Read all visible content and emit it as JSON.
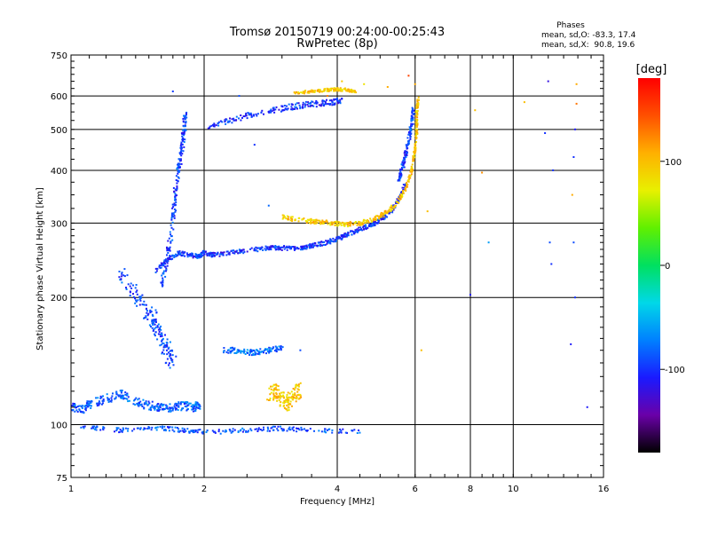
{
  "header": {
    "title_line1": "Tromsø 20150719 00:24:00-00:25:43",
    "title_line2": "RwPretec (8p)"
  },
  "stats": {
    "heading": "Phases",
    "line_o": "mean, sd,O: -83.3, 17.4",
    "line_x": "mean, sd,X:  90.8, 19.6"
  },
  "colorbar": {
    "unit_label": "[deg]",
    "tick_labels": [
      "100",
      "0",
      "-100"
    ],
    "tick_values": [
      100,
      0,
      -100
    ],
    "range": [
      -180,
      180
    ],
    "colors": [
      "#000000",
      "#6a00a8",
      "#1a1aff",
      "#0080ff",
      "#00d8e8",
      "#00e060",
      "#60f000",
      "#e8f000",
      "#ffb000",
      "#ff5000",
      "#ff0000"
    ]
  },
  "chart_data": {
    "type": "scatter",
    "title": "Tromsø 20150719 00:24:00-00:25:43",
    "subtitle": "RwPretec (8p)",
    "xlabel": "Frequency [MHz]",
    "ylabel": "Stationary phase Virtual Height [km]",
    "xscale": "log",
    "yscale": "log",
    "xlim": [
      1,
      16
    ],
    "ylim": [
      75,
      750
    ],
    "xticks": [
      1,
      2,
      4,
      6,
      8,
      10,
      16
    ],
    "xtick_labels": [
      "1",
      "2",
      "4",
      "6",
      "8",
      "10",
      "16"
    ],
    "yticks": [
      75,
      100,
      200,
      300,
      400,
      500,
      600,
      750
    ],
    "ytick_labels": [
      "75",
      "100",
      "200",
      "300",
      "400",
      "500",
      "600",
      "750"
    ],
    "grid": true,
    "color_variable": "phase [deg]",
    "traces": [
      {
        "freq": [
          1.0,
          1.05,
          1.1,
          1.2,
          1.3,
          1.4,
          1.5,
          1.6,
          1.7,
          1.8,
          1.9,
          1.95
        ],
        "height": [
          110,
          108,
          112,
          115,
          118,
          113,
          111,
          110,
          110,
          111,
          110,
          111
        ],
        "phase": -85,
        "spread": 0.03
      },
      {
        "freq": [
          1.3,
          1.4,
          1.5,
          1.55,
          1.6,
          1.65,
          1.7
        ],
        "height": [
          230,
          200,
          185,
          175,
          160,
          150,
          140
        ],
        "phase": -95,
        "spread": 0.06
      },
      {
        "freq": [
          1.6,
          1.65,
          1.7,
          1.72,
          1.75,
          1.78,
          1.8,
          1.82
        ],
        "height": [
          210,
          250,
          300,
          350,
          400,
          450,
          500,
          550
        ],
        "phase": -95,
        "spread": 0.03
      },
      {
        "freq": [
          1.55,
          1.65,
          1.75,
          1.85,
          1.95,
          2.0,
          2.1,
          2.3,
          2.5,
          2.8,
          3.0,
          3.3,
          3.5,
          3.8,
          4.0,
          4.2,
          4.5,
          4.8,
          5.0,
          5.3,
          5.5,
          5.7
        ],
        "height": [
          230,
          245,
          255,
          252,
          250,
          255,
          252,
          255,
          258,
          262,
          262,
          262,
          265,
          270,
          275,
          282,
          290,
          297,
          305,
          320,
          340,
          370
        ],
        "phase": -100,
        "spread": 0.015
      },
      {
        "freq": [
          2.05,
          2.3,
          2.6,
          3.0,
          3.3,
          3.6,
          3.9,
          4.1
        ],
        "height": [
          510,
          525,
          545,
          560,
          570,
          575,
          580,
          585
        ],
        "phase": -100,
        "spread": 0.02
      },
      {
        "freq": [
          5.5,
          5.6,
          5.7,
          5.8,
          5.9,
          5.95
        ],
        "height": [
          380,
          400,
          430,
          470,
          520,
          560
        ],
        "phase": -95,
        "spread": 0.02
      },
      {
        "freq": [
          3.0,
          3.3,
          3.6,
          3.9,
          4.2,
          4.5,
          4.8,
          5.1,
          5.4,
          5.7,
          5.9,
          6.0,
          6.05,
          6.05,
          6.1
        ],
        "height": [
          310,
          305,
          302,
          300,
          298,
          300,
          306,
          315,
          330,
          360,
          400,
          450,
          500,
          550,
          590
        ],
        "phase": 95,
        "spread": 0.015
      },
      {
        "freq": [
          3.2,
          3.5,
          3.8,
          4.0,
          4.2,
          4.4
        ],
        "height": [
          610,
          615,
          620,
          622,
          620,
          615
        ],
        "phase": 95,
        "spread": 0.01
      },
      {
        "freq": [
          2.8,
          2.9,
          3.0,
          3.1,
          3.2,
          3.3
        ],
        "height": [
          118,
          120,
          115,
          112,
          118,
          121
        ],
        "phase": 95,
        "spread": 0.05
      },
      {
        "freq": [
          1.05,
          1.3,
          1.6,
          1.8,
          2.05,
          2.5,
          3.0,
          3.5,
          4.5
        ],
        "height": [
          99,
          97,
          98,
          97,
          96,
          97,
          98,
          97,
          96
        ],
        "phase": -90,
        "spread": 0.015
      },
      {
        "freq": [
          2.2,
          2.4,
          2.6,
          2.8,
          3.0
        ],
        "height": [
          150,
          150,
          148,
          150,
          152
        ],
        "phase": -80,
        "spread": 0.02
      }
    ],
    "scattered": [
      [
        1.7,
        615,
        -95
      ],
      [
        4.6,
        640,
        80
      ],
      [
        5.2,
        630,
        110
      ],
      [
        6.2,
        150,
        100
      ],
      [
        6.0,
        640,
        110
      ],
      [
        8.2,
        555,
        100
      ],
      [
        8.5,
        395,
        120
      ],
      [
        8.8,
        270,
        -60
      ],
      [
        8.0,
        203,
        -110
      ],
      [
        10.6,
        580,
        100
      ],
      [
        12.0,
        650,
        -120
      ],
      [
        12.3,
        400,
        -100
      ],
      [
        12.1,
        270,
        -90
      ],
      [
        13.9,
        640,
        110
      ],
      [
        13.9,
        575,
        130
      ],
      [
        13.8,
        500,
        -110
      ],
      [
        13.7,
        430,
        -100
      ],
      [
        13.6,
        350,
        110
      ],
      [
        13.7,
        270,
        -90
      ],
      [
        13.8,
        200,
        -100
      ],
      [
        13.5,
        155,
        -110
      ],
      [
        14.7,
        110,
        -110
      ],
      [
        11.8,
        490,
        -100
      ],
      [
        12.2,
        240,
        -100
      ],
      [
        2.4,
        600,
        -90
      ],
      [
        2.6,
        460,
        -100
      ],
      [
        2.8,
        330,
        -80
      ],
      [
        3.3,
        150,
        -90
      ],
      [
        3.8,
        600,
        130
      ],
      [
        4.1,
        650,
        95
      ],
      [
        5.8,
        670,
        150
      ],
      [
        6.4,
        320,
        100
      ]
    ]
  }
}
